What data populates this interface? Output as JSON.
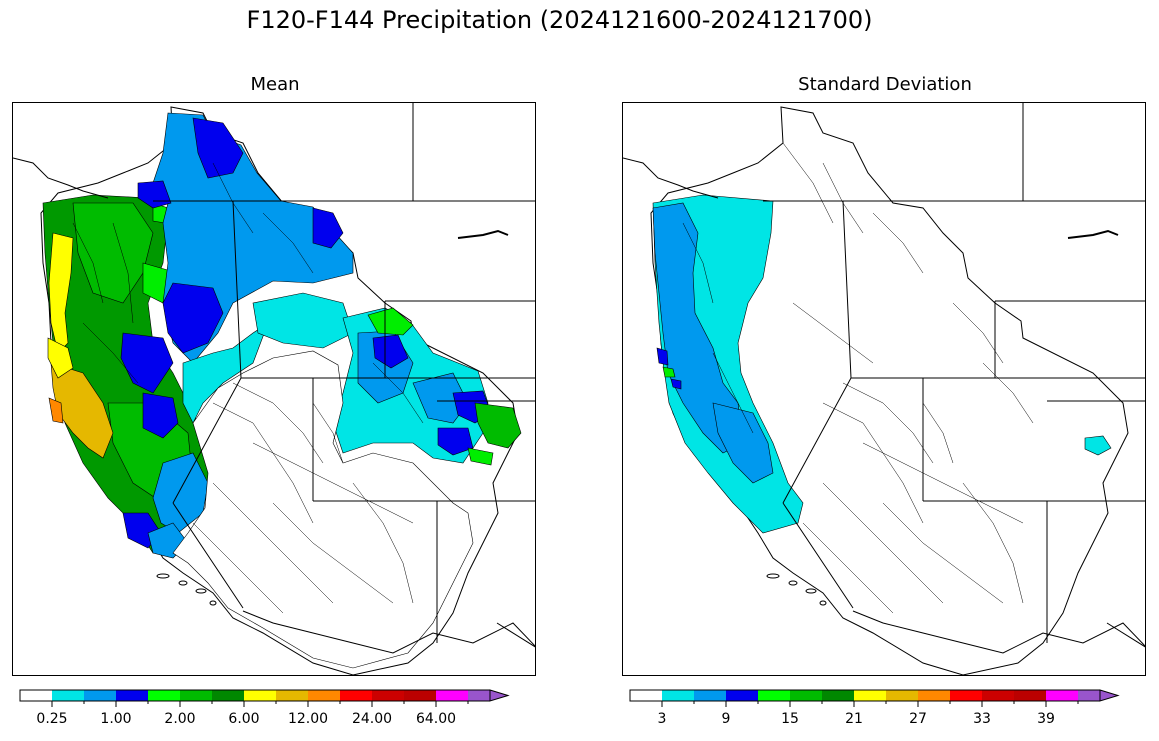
{
  "title": "F120-F144 Precipitation (2024121600-2024121700)",
  "panels": {
    "mean": {
      "title": "Mean",
      "colorbar": {
        "colors": [
          "#ffffff",
          "#00e5e5",
          "#0099ee",
          "#0000ee",
          "#00ff00",
          "#00bb00",
          "#008800",
          "#ffff00",
          "#e5b800",
          "#ff8800",
          "#ff0000",
          "#cc0000",
          "#bb0000",
          "#ff00ff",
          "#9955cc"
        ],
        "tick_labels": [
          "0.25",
          "1.00",
          "2.00",
          "6.00",
          "12.00",
          "24.00",
          "64.00"
        ],
        "extend": "max"
      }
    },
    "sd": {
      "title": "Standard Deviation",
      "colorbar": {
        "colors": [
          "#ffffff",
          "#00e5e5",
          "#0099ee",
          "#0000ee",
          "#00ff00",
          "#00bb00",
          "#008800",
          "#ffff00",
          "#e5b800",
          "#ff8800",
          "#ff0000",
          "#cc0000",
          "#bb0000",
          "#ff00ff",
          "#9955cc"
        ],
        "tick_labels": [
          "3",
          "9",
          "15",
          "21",
          "27",
          "33",
          "39"
        ],
        "extend": "max"
      }
    }
  }
}
